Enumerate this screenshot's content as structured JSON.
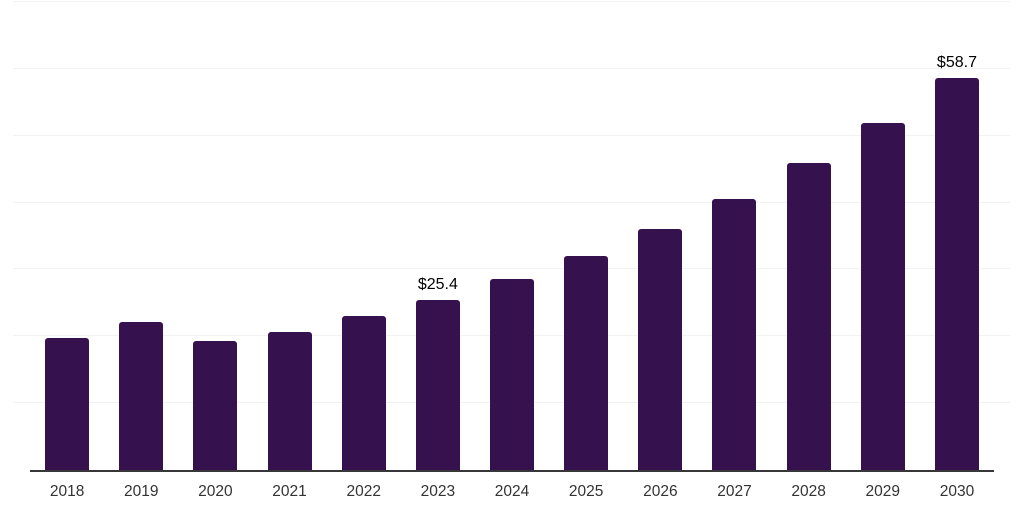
{
  "chart_data": {
    "type": "bar",
    "title": "",
    "xlabel": "",
    "ylabel": "",
    "categories": [
      "2018",
      "2019",
      "2020",
      "2021",
      "2022",
      "2023",
      "2024",
      "2025",
      "2026",
      "2027",
      "2028",
      "2029",
      "2030"
    ],
    "values": [
      19.7,
      22.1,
      19.3,
      20.6,
      23.0,
      25.4,
      28.5,
      32.0,
      36.1,
      40.5,
      45.9,
      51.9,
      58.7
    ],
    "labeled_points": [
      {
        "category": "2023",
        "label": "$25.4"
      },
      {
        "category": "2030",
        "label": "$58.7"
      }
    ],
    "ylim": [
      0,
      70
    ],
    "gridline_step": 10,
    "grid": true,
    "legend_position": "none",
    "y_tick_labels_visible": false,
    "colors": {
      "bar": "#35114e",
      "gridline": "#f2f2f2",
      "axis_line": "#37373a",
      "value_label": "#000000",
      "tick_label": "#333333",
      "background": "#ffffff"
    }
  }
}
